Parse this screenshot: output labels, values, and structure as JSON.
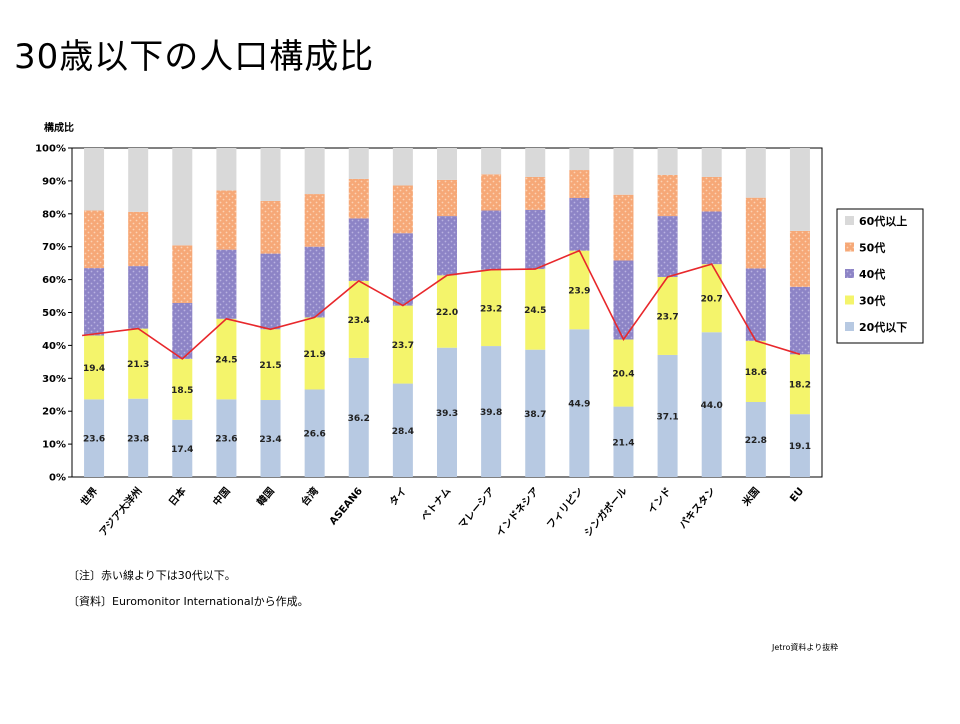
{
  "page": {
    "title": "30歳以下の人口構成比"
  },
  "notes": {
    "note": "〔注〕赤い線より下は30代以下。",
    "source_material": "〔資料〕Euromonitor Internationalから作成。",
    "credit": "Jetro資料より抜粋"
  },
  "chart_data": {
    "type": "bar",
    "stacked": true,
    "ylabel": "構成比",
    "ylim": [
      0,
      100
    ],
    "yticks": [
      "0%",
      "10%",
      "20%",
      "30%",
      "40%",
      "50%",
      "60%",
      "70%",
      "80%",
      "90%",
      "100%"
    ],
    "categories": [
      "世界",
      "アジア大洋州",
      "日本",
      "中国",
      "韓国",
      "台湾",
      "ASEAN6",
      "タイ",
      "ベトナム",
      "マレーシア",
      "インドネシア",
      "フィリピン",
      "シンガポール",
      "インド",
      "パキスタン",
      "米国",
      "EU"
    ],
    "series": [
      {
        "name": "20代以下",
        "color": "#b7c9e2",
        "values": [
          23.6,
          23.8,
          17.4,
          23.6,
          23.4,
          26.6,
          36.2,
          28.4,
          39.3,
          39.8,
          38.7,
          44.9,
          21.4,
          37.1,
          44.0,
          22.8,
          19.1
        ],
        "labels": [
          "23.6",
          "23.8",
          "17.4",
          "23.6",
          "23.4",
          "26.6",
          "36.2",
          "28.4",
          "39.3",
          "39.8",
          "38.7",
          "44.9",
          "21.4",
          "37.1",
          "44.0",
          "22.8",
          "19.1"
        ]
      },
      {
        "name": "30代",
        "color": "#f4f46b",
        "values": [
          19.4,
          21.3,
          18.5,
          24.5,
          21.5,
          21.9,
          23.4,
          23.7,
          22.0,
          23.2,
          24.5,
          23.9,
          20.4,
          23.7,
          20.7,
          18.6,
          18.2
        ],
        "labels": [
          "19.4",
          "21.3",
          "18.5",
          "24.5",
          "21.5",
          "21.9",
          "23.4",
          "23.7",
          "22.0",
          "23.2",
          "24.5",
          "23.9",
          "20.4",
          "23.7",
          "20.7",
          "18.6",
          "18.2"
        ]
      },
      {
        "name": "40代",
        "color": "#8d84c6",
        "values": [
          20.5,
          19.0,
          17.0,
          21.0,
          23.0,
          21.5,
          19.0,
          22.0,
          18.0,
          18.0,
          18.0,
          16.0,
          24.0,
          18.5,
          16.0,
          22.0,
          20.5
        ]
      },
      {
        "name": "50代",
        "color": "#f6a877",
        "values": [
          17.5,
          16.5,
          17.5,
          18.0,
          16.0,
          16.0,
          12.0,
          14.5,
          11.0,
          11.0,
          10.0,
          8.5,
          20.0,
          12.5,
          10.5,
          21.5,
          17.0
        ]
      },
      {
        "name": "60代以上",
        "color": "#d9d9d9",
        "values": [
          19.0,
          19.4,
          29.6,
          12.9,
          16.1,
          14.0,
          9.4,
          11.4,
          9.7,
          8.0,
          8.8,
          6.7,
          14.2,
          8.2,
          8.8,
          15.1,
          25.2
        ]
      }
    ],
    "legend": {
      "placement": "right",
      "order": [
        "60代以上",
        "50代",
        "40代",
        "30代",
        "20代以下"
      ]
    },
    "line": {
      "color": "#e8282c",
      "meaning": "30代以下",
      "series_sum": [
        "20代以下",
        "30代"
      ]
    }
  }
}
